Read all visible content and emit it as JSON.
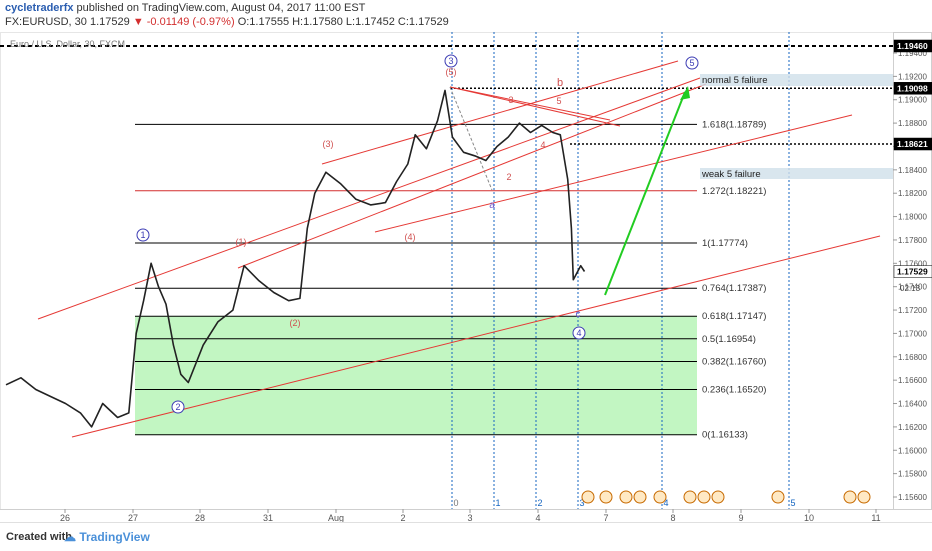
{
  "header": {
    "user": "cycletraderfx",
    "published": " published on TradingView.com, August 04, 2017 11:00 EST",
    "symbol": "FX:EURUSD, 30",
    "last": "1.17529",
    "change": "-0.01149 (-0.97%)",
    "ohlc": "O:1.17555  H:1.17580  L:1.17452  C:1.17529"
  },
  "footer": {
    "created_with": "Created with",
    "brand": "TradingView"
  },
  "chart_data": {
    "type": "line",
    "title": "EURUSD, 30",
    "legend_text": "Euro / U.S. Dollar, 30, FXCM",
    "ylim": [
      1.155,
      1.1962
    ],
    "y_ticks": [
      "1.19400",
      "1.19200",
      "1.19000",
      "1.18800",
      "1.18600",
      "1.18400",
      "1.18200",
      "1.18000",
      "1.17800",
      "1.17600",
      "1.17400",
      "1.17200",
      "1.17000",
      "1.16800",
      "1.16600",
      "1.16400",
      "1.16200",
      "1.16000",
      "1.15800",
      "1.15600"
    ],
    "x_ticks": [
      "26",
      "27",
      "28",
      "31",
      "Aug",
      "2",
      "3",
      "4",
      "7",
      "8",
      "9",
      "10",
      "11"
    ],
    "price_path": [
      [
        0,
        1.1656
      ],
      [
        0.4,
        1.1662
      ],
      [
        0.8,
        1.1652
      ],
      [
        1.2,
        1.1646
      ],
      [
        1.6,
        1.164
      ],
      [
        2.0,
        1.1632
      ],
      [
        2.3,
        1.162
      ],
      [
        2.6,
        1.164
      ],
      [
        3.0,
        1.1628
      ],
      [
        3.3,
        1.1632
      ],
      [
        3.5,
        1.17
      ],
      [
        3.7,
        1.1728
      ],
      [
        3.9,
        1.176
      ],
      [
        4.1,
        1.174
      ],
      [
        4.3,
        1.1725
      ],
      [
        4.5,
        1.169
      ],
      [
        4.7,
        1.1665
      ],
      [
        4.9,
        1.1658
      ],
      [
        5.3,
        1.169
      ],
      [
        5.7,
        1.171
      ],
      [
        6.1,
        1.172
      ],
      [
        6.4,
        1.1758
      ],
      [
        6.8,
        1.1745
      ],
      [
        7.2,
        1.1735
      ],
      [
        7.6,
        1.1728
      ],
      [
        7.9,
        1.173
      ],
      [
        8.1,
        1.179
      ],
      [
        8.3,
        1.182
      ],
      [
        8.6,
        1.1838
      ],
      [
        9.0,
        1.1828
      ],
      [
        9.4,
        1.1815
      ],
      [
        9.8,
        1.181
      ],
      [
        10.2,
        1.1812
      ],
      [
        10.5,
        1.183
      ],
      [
        10.8,
        1.1845
      ],
      [
        11.0,
        1.187
      ],
      [
        11.3,
        1.1858
      ],
      [
        11.6,
        1.1882
      ],
      [
        11.8,
        1.1908
      ],
      [
        12.0,
        1.1868
      ],
      [
        12.3,
        1.1855
      ],
      [
        12.6,
        1.1852
      ],
      [
        12.9,
        1.1848
      ],
      [
        13.2,
        1.186
      ],
      [
        13.5,
        1.1868
      ],
      [
        13.8,
        1.188
      ],
      [
        14.1,
        1.1872
      ],
      [
        14.4,
        1.1878
      ],
      [
        14.7,
        1.1872
      ],
      [
        14.9,
        1.187
      ],
      [
        15.1,
        1.1832
      ],
      [
        15.2,
        1.179
      ],
      [
        15.25,
        1.1746
      ],
      [
        15.35,
        1.1752
      ],
      [
        15.45,
        1.1758
      ],
      [
        15.55,
        1.1753
      ]
    ],
    "price_tags": [
      {
        "value": 1.1946,
        "label": "1.19460",
        "bg": "#000000",
        "fg": "#ffffff"
      },
      {
        "value": 1.19098,
        "label": "1.19098",
        "bg": "#000000",
        "fg": "#ffffff"
      },
      {
        "value": 1.18621,
        "label": "1.18621",
        "bg": "#000000",
        "fg": "#ffffff"
      },
      {
        "value": 1.17529,
        "label": "1.17529",
        "bg": "#ffffff",
        "fg": "#000000"
      }
    ],
    "countdown": "02:13",
    "fib_levels": [
      {
        "value": 1.18789,
        "label": "1.618(1.18789)",
        "color": "#000000"
      },
      {
        "value": 1.18221,
        "label": "1.272(1.18221)",
        "color": "#d32f2f"
      },
      {
        "value": 1.17774,
        "label": "1(1.17774)",
        "color": "#000000"
      },
      {
        "value": 1.17387,
        "label": "0.764(1.17387)",
        "color": "#000000"
      },
      {
        "value": 1.17147,
        "label": "0.618(1.17147)",
        "color": "#000000"
      },
      {
        "value": 1.16954,
        "label": "0.5(1.16954)",
        "color": "#000000"
      },
      {
        "value": 1.1676,
        "label": "0.382(1.16760)",
        "color": "#000000"
      },
      {
        "value": 1.1652,
        "label": "0.236(1.16520)",
        "color": "#000000"
      },
      {
        "value": 1.16133,
        "label": "0(1.16133)",
        "color": "#000000"
      }
    ],
    "annotations": [
      {
        "text": "normal 5 faliure",
        "value": 1.19098
      },
      {
        "text": "weak 5 failure",
        "value": 1.183
      }
    ],
    "wave_labels_circled": [
      "1",
      "2",
      "3",
      "4",
      "5"
    ],
    "wave_labels_red": [
      "(1)",
      "(2)",
      "(3)",
      "(4)",
      "(5)",
      "b",
      "3",
      "5",
      "4",
      "2"
    ],
    "wave_labels_blue": [
      "a",
      "c"
    ],
    "time_markers": [
      "0",
      "1",
      "2",
      "3",
      "4",
      "5"
    ],
    "colors": {
      "zone": "#90ee90",
      "up_arrow": "#22cc22",
      "channel": "#e53935",
      "wave_circle": "#3c3cb4",
      "cycle_line": "#1565c0"
    }
  }
}
